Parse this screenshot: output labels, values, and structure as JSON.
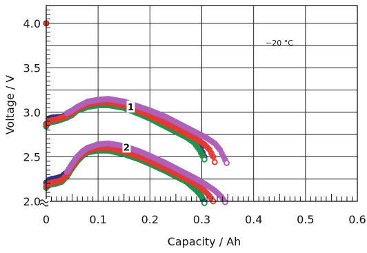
{
  "chart_data": {
    "type": "scatter",
    "title": "",
    "xlabel": "Capacity / Ah",
    "ylabel": "Voltage / V",
    "xlim": [
      0,
      0.6
    ],
    "ylim": [
      2.0,
      4.2
    ],
    "x_ticks": [
      0,
      0.1,
      0.2,
      0.3,
      0.4,
      0.5,
      0.6
    ],
    "x_tick_labels": [
      "0",
      "0.1",
      "0.2",
      "0.3",
      "0.4",
      "0.5",
      "0.6"
    ],
    "y_ticks": [
      2.0,
      2.5,
      3.0,
      3.5,
      4.0
    ],
    "y_tick_labels": [
      "2.0",
      "2.5",
      "3.0",
      "3.5",
      "4.0"
    ],
    "grid": true,
    "y_axis_break": true,
    "annotation": "−20 °C",
    "curve_labels": [
      {
        "text": "1",
        "x": 0.163,
        "y": 3.06
      },
      {
        "text": "2",
        "x": 0.155,
        "y": 2.61
      }
    ],
    "start_point": {
      "x": 0,
      "y": 4.0,
      "color": "#e23a33"
    },
    "series": [
      {
        "group": "1",
        "color": "#2e2f86",
        "points": [
          [
            0,
            2.87
          ],
          [
            0.005,
            2.93
          ],
          [
            0.01,
            2.94
          ],
          [
            0.02,
            2.945
          ],
          [
            0.03,
            2.95
          ],
          [
            0.04,
            2.97
          ],
          [
            0.05,
            3.0
          ],
          [
            0.06,
            3.05
          ],
          [
            0.08,
            3.1
          ],
          [
            0.1,
            3.12
          ],
          [
            0.12,
            3.12
          ],
          [
            0.15,
            3.09
          ],
          [
            0.18,
            3.02
          ],
          [
            0.2,
            2.97
          ],
          [
            0.23,
            2.88
          ],
          [
            0.25,
            2.82
          ],
          [
            0.27,
            2.76
          ],
          [
            0.28,
            2.72
          ],
          [
            0.295,
            2.64
          ],
          [
            0.305,
            2.5
          ]
        ]
      },
      {
        "group": "1",
        "color": "#23914b",
        "points": [
          [
            0,
            2.84
          ],
          [
            0.005,
            2.88
          ],
          [
            0.01,
            2.89
          ],
          [
            0.02,
            2.9
          ],
          [
            0.03,
            2.92
          ],
          [
            0.04,
            2.94
          ],
          [
            0.05,
            2.97
          ],
          [
            0.06,
            3.02
          ],
          [
            0.08,
            3.06
          ],
          [
            0.1,
            3.08
          ],
          [
            0.12,
            3.08
          ],
          [
            0.15,
            3.05
          ],
          [
            0.18,
            2.98
          ],
          [
            0.2,
            2.93
          ],
          [
            0.23,
            2.84
          ],
          [
            0.25,
            2.78
          ],
          [
            0.27,
            2.72
          ],
          [
            0.285,
            2.66
          ],
          [
            0.295,
            2.58
          ],
          [
            0.305,
            2.47
          ]
        ]
      },
      {
        "group": "1",
        "color": "#e23a33",
        "points": [
          [
            0,
            2.86
          ],
          [
            0.005,
            2.9
          ],
          [
            0.01,
            2.91
          ],
          [
            0.02,
            2.92
          ],
          [
            0.03,
            2.94
          ],
          [
            0.04,
            2.96
          ],
          [
            0.05,
            2.99
          ],
          [
            0.06,
            3.04
          ],
          [
            0.08,
            3.09
          ],
          [
            0.1,
            3.11
          ],
          [
            0.12,
            3.11
          ],
          [
            0.15,
            3.08
          ],
          [
            0.18,
            3.01
          ],
          [
            0.2,
            2.96
          ],
          [
            0.23,
            2.88
          ],
          [
            0.25,
            2.82
          ],
          [
            0.27,
            2.76
          ],
          [
            0.29,
            2.7
          ],
          [
            0.305,
            2.64
          ],
          [
            0.315,
            2.58
          ],
          [
            0.322,
            2.5
          ],
          [
            0.325,
            2.44
          ]
        ]
      },
      {
        "group": "1",
        "color": "#b060b8",
        "points": [
          [
            0.04,
            2.99
          ],
          [
            0.05,
            3.02
          ],
          [
            0.06,
            3.06
          ],
          [
            0.08,
            3.12
          ],
          [
            0.1,
            3.14
          ],
          [
            0.12,
            3.15
          ],
          [
            0.15,
            3.12
          ],
          [
            0.18,
            3.06
          ],
          [
            0.2,
            3.02
          ],
          [
            0.23,
            2.95
          ],
          [
            0.25,
            2.89
          ],
          [
            0.27,
            2.83
          ],
          [
            0.29,
            2.77
          ],
          [
            0.31,
            2.71
          ],
          [
            0.325,
            2.65
          ],
          [
            0.335,
            2.58
          ],
          [
            0.342,
            2.5
          ],
          [
            0.348,
            2.43
          ]
        ]
      },
      {
        "group": "2",
        "color": "#2e2f86",
        "points": [
          [
            0,
            2.21
          ],
          [
            0.005,
            2.24
          ],
          [
            0.01,
            2.25
          ],
          [
            0.02,
            2.26
          ],
          [
            0.03,
            2.28
          ],
          [
            0.04,
            2.33
          ],
          [
            0.05,
            2.42
          ],
          [
            0.06,
            2.5
          ],
          [
            0.07,
            2.56
          ],
          [
            0.08,
            2.6
          ],
          [
            0.1,
            2.62
          ],
          [
            0.12,
            2.62
          ],
          [
            0.15,
            2.58
          ],
          [
            0.18,
            2.52
          ],
          [
            0.2,
            2.47
          ],
          [
            0.23,
            2.39
          ],
          [
            0.25,
            2.33
          ],
          [
            0.27,
            2.26
          ],
          [
            0.285,
            2.19
          ],
          [
            0.295,
            2.1
          ],
          [
            0.305,
            1.99
          ]
        ]
      },
      {
        "group": "2",
        "color": "#23914b",
        "points": [
          [
            0,
            2.15
          ],
          [
            0.005,
            2.18
          ],
          [
            0.01,
            2.19
          ],
          [
            0.02,
            2.2
          ],
          [
            0.03,
            2.22
          ],
          [
            0.04,
            2.28
          ],
          [
            0.05,
            2.37
          ],
          [
            0.06,
            2.45
          ],
          [
            0.07,
            2.51
          ],
          [
            0.08,
            2.55
          ],
          [
            0.1,
            2.57
          ],
          [
            0.12,
            2.57
          ],
          [
            0.15,
            2.53
          ],
          [
            0.18,
            2.47
          ],
          [
            0.2,
            2.42
          ],
          [
            0.23,
            2.34
          ],
          [
            0.25,
            2.28
          ],
          [
            0.27,
            2.22
          ],
          [
            0.29,
            2.12
          ],
          [
            0.3,
            2.05
          ],
          [
            0.305,
            1.98
          ]
        ]
      },
      {
        "group": "2",
        "color": "#e23a33",
        "points": [
          [
            0,
            2.17
          ],
          [
            0.005,
            2.2
          ],
          [
            0.01,
            2.21
          ],
          [
            0.02,
            2.22
          ],
          [
            0.03,
            2.24
          ],
          [
            0.04,
            2.3
          ],
          [
            0.05,
            2.39
          ],
          [
            0.06,
            2.47
          ],
          [
            0.07,
            2.53
          ],
          [
            0.08,
            2.57
          ],
          [
            0.1,
            2.6
          ],
          [
            0.12,
            2.6
          ],
          [
            0.15,
            2.56
          ],
          [
            0.18,
            2.5
          ],
          [
            0.2,
            2.45
          ],
          [
            0.23,
            2.37
          ],
          [
            0.25,
            2.31
          ],
          [
            0.27,
            2.25
          ],
          [
            0.29,
            2.19
          ],
          [
            0.305,
            2.12
          ],
          [
            0.315,
            2.06
          ],
          [
            0.322,
            2.0
          ]
        ]
      },
      {
        "group": "2",
        "color": "#b060b8",
        "points": [
          [
            0.04,
            2.33
          ],
          [
            0.05,
            2.42
          ],
          [
            0.06,
            2.5
          ],
          [
            0.07,
            2.56
          ],
          [
            0.08,
            2.6
          ],
          [
            0.1,
            2.64
          ],
          [
            0.12,
            2.65
          ],
          [
            0.15,
            2.62
          ],
          [
            0.18,
            2.56
          ],
          [
            0.2,
            2.51
          ],
          [
            0.23,
            2.43
          ],
          [
            0.25,
            2.37
          ],
          [
            0.27,
            2.31
          ],
          [
            0.29,
            2.25
          ],
          [
            0.31,
            2.18
          ],
          [
            0.325,
            2.12
          ],
          [
            0.338,
            2.05
          ],
          [
            0.345,
            1.99
          ]
        ]
      }
    ]
  }
}
